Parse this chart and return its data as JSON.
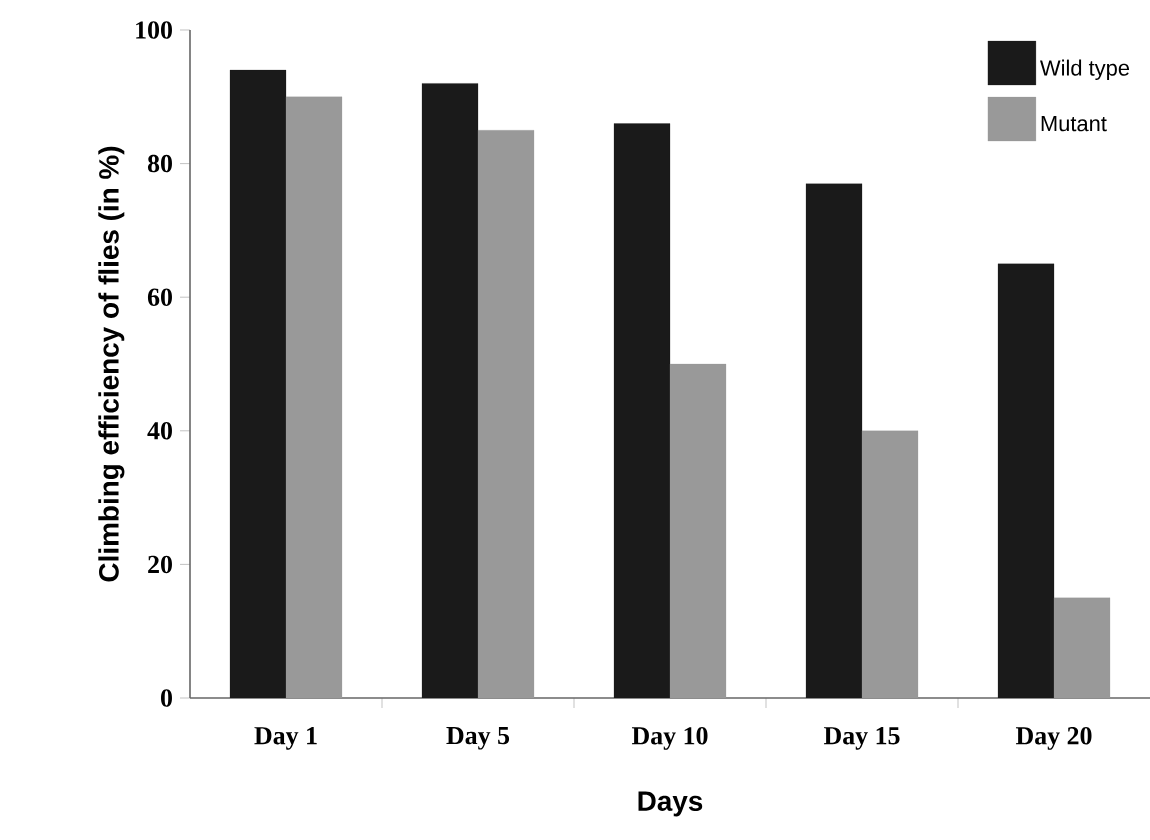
{
  "chart_data": {
    "type": "bar",
    "xlabel": "Days",
    "ylabel": "Climbing efficiency of flies (in %)",
    "categories": [
      "Day 1",
      "Day 5",
      "Day 10",
      "Day 15",
      "Day 20"
    ],
    "series": [
      {
        "name": "Wild type",
        "color": "#1a1a1a",
        "values": [
          94,
          92,
          86,
          77,
          65
        ]
      },
      {
        "name": "Mutant",
        "color": "#999999",
        "values": [
          90,
          85,
          50,
          40,
          15
        ]
      }
    ],
    "ylim": [
      0,
      100
    ],
    "yticks": [
      0,
      20,
      40,
      60,
      80,
      100
    ],
    "grid": false,
    "legend": "top right"
  }
}
